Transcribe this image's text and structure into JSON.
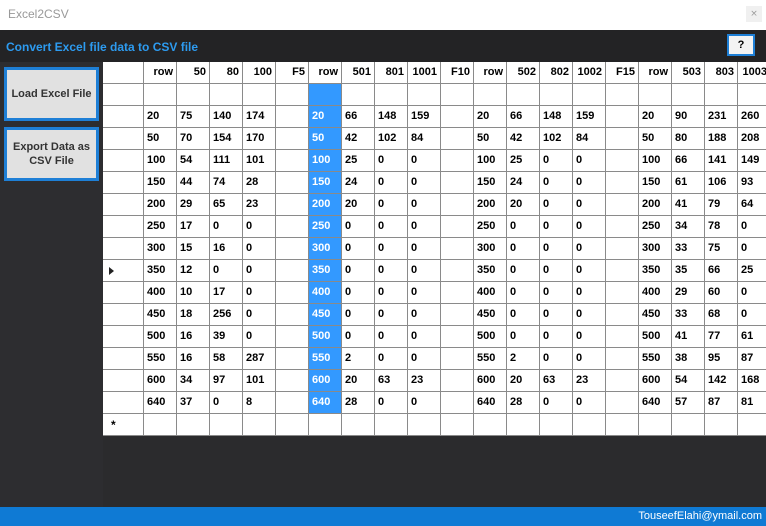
{
  "window": {
    "title": "Excel2CSV",
    "close_glyph": "×"
  },
  "header": {
    "heading": "Convert Excel file data to CSV file",
    "help_label": "?"
  },
  "sidebar": {
    "load_label": "Load Excel File",
    "export_label": "Export Data as CSV File"
  },
  "grid": {
    "columns": [
      "row",
      "50",
      "80",
      "100",
      "F5",
      "row",
      "501",
      "801",
      "1001",
      "F10",
      "row",
      "502",
      "802",
      "1002",
      "F15",
      "row",
      "503",
      "803",
      "1003"
    ],
    "rows": [
      [
        "",
        "",
        "",
        "",
        "",
        "",
        "",
        "",
        "",
        "",
        "",
        "",
        "",
        "",
        "",
        "",
        "",
        "",
        ""
      ],
      [
        "20",
        "75",
        "140",
        "174",
        "",
        "20",
        "66",
        "148",
        "159",
        "",
        "20",
        "66",
        "148",
        "159",
        "",
        "20",
        "90",
        "231",
        "260"
      ],
      [
        "50",
        "70",
        "154",
        "170",
        "",
        "50",
        "42",
        "102",
        "84",
        "",
        "50",
        "42",
        "102",
        "84",
        "",
        "50",
        "80",
        "188",
        "208"
      ],
      [
        "100",
        "54",
        "111",
        "101",
        "",
        "100",
        "25",
        "0",
        "0",
        "",
        "100",
        "25",
        "0",
        "0",
        "",
        "100",
        "66",
        "141",
        "149"
      ],
      [
        "150",
        "44",
        "74",
        "28",
        "",
        "150",
        "24",
        "0",
        "0",
        "",
        "150",
        "24",
        "0",
        "0",
        "",
        "150",
        "61",
        "106",
        "93"
      ],
      [
        "200",
        "29",
        "65",
        "23",
        "",
        "200",
        "20",
        "0",
        "0",
        "",
        "200",
        "20",
        "0",
        "0",
        "",
        "200",
        "41",
        "79",
        "64"
      ],
      [
        "250",
        "17",
        "0",
        "0",
        "",
        "250",
        "0",
        "0",
        "0",
        "",
        "250",
        "0",
        "0",
        "0",
        "",
        "250",
        "34",
        "78",
        "0"
      ],
      [
        "300",
        "15",
        "16",
        "0",
        "",
        "300",
        "0",
        "0",
        "0",
        "",
        "300",
        "0",
        "0",
        "0",
        "",
        "300",
        "33",
        "75",
        "0"
      ],
      [
        "350",
        "12",
        "0",
        "0",
        "",
        "350",
        "0",
        "0",
        "0",
        "",
        "350",
        "0",
        "0",
        "0",
        "",
        "350",
        "35",
        "66",
        "25"
      ],
      [
        "400",
        "10",
        "17",
        "0",
        "",
        "400",
        "0",
        "0",
        "0",
        "",
        "400",
        "0",
        "0",
        "0",
        "",
        "400",
        "29",
        "60",
        "0"
      ],
      [
        "450",
        "18",
        "256",
        "0",
        "",
        "450",
        "0",
        "0",
        "0",
        "",
        "450",
        "0",
        "0",
        "0",
        "",
        "450",
        "33",
        "68",
        "0"
      ],
      [
        "500",
        "16",
        "39",
        "0",
        "",
        "500",
        "0",
        "0",
        "0",
        "",
        "500",
        "0",
        "0",
        "0",
        "",
        "500",
        "41",
        "77",
        "61"
      ],
      [
        "550",
        "16",
        "58",
        "287",
        "",
        "550",
        "2",
        "0",
        "0",
        "",
        "550",
        "2",
        "0",
        "0",
        "",
        "550",
        "38",
        "95",
        "87"
      ],
      [
        "600",
        "34",
        "97",
        "101",
        "",
        "600",
        "20",
        "63",
        "23",
        "",
        "600",
        "20",
        "63",
        "23",
        "",
        "600",
        "54",
        "142",
        "168"
      ],
      [
        "640",
        "37",
        "0",
        "8",
        "",
        "640",
        "28",
        "0",
        "0",
        "",
        "640",
        "28",
        "0",
        "0",
        "",
        "640",
        "57",
        "87",
        "81"
      ],
      [
        "",
        "",
        "",
        "",
        "",
        "",
        "",
        "",
        "",
        "",
        "",
        "",
        "",
        "",
        "",
        "",
        "",
        "",
        ""
      ]
    ],
    "current_row_index": 8,
    "new_row_glyph": "*",
    "selected_column_index": 5
  },
  "footer": {
    "email": "TouseefElahi@ymail.com"
  },
  "colors": {
    "accent": "#1e7fd6",
    "selection": "#3399ff",
    "background": "#2d2d30"
  }
}
